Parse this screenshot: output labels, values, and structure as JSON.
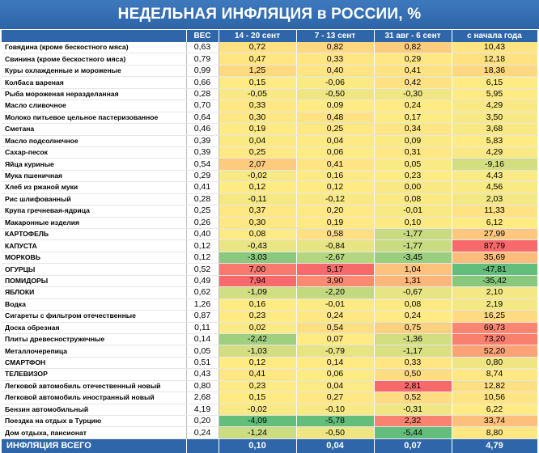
{
  "title": "НЕДЕЛЬНАЯ ИНФЛЯЦИЯ в РОССИИ, %",
  "chart_data": {
    "type": "table",
    "columns": [
      "ВЕС",
      "14 - 20 сент",
      "7 - 13 сент",
      "31 авг - 6 сент",
      "с начала года"
    ],
    "rows": [
      {
        "name": "Говядина (кроме бескостного мяса)",
        "values": [
          "0,63",
          "0,72",
          "0,82",
          "0,82",
          "10,43"
        ],
        "group_start": false
      },
      {
        "name": "Свинина (кроме бескостного мяса)",
        "values": [
          "0,79",
          "0,47",
          "0,33",
          "0,29",
          "12,18"
        ],
        "group_start": false
      },
      {
        "name": "Куры охлажденные и мороженые",
        "values": [
          "0,99",
          "1,25",
          "0,40",
          "0,41",
          "18,36"
        ],
        "group_start": false
      },
      {
        "name": "Колбаса вареная",
        "values": [
          "0,66",
          "0,15",
          "-0,06",
          "0,42",
          "6,15"
        ],
        "group_start": false
      },
      {
        "name": "Рыба мороженая неразделанная",
        "values": [
          "0,28",
          "-0,05",
          "-0,50",
          "-0,30",
          "5,95"
        ],
        "group_start": false
      },
      {
        "name": "Масло сливочное",
        "values": [
          "0,70",
          "0,33",
          "0,09",
          "0,24",
          "4,29"
        ],
        "group_start": true
      },
      {
        "name": "Молоко питьевое цельное пастеризованное",
        "values": [
          "0,64",
          "0,30",
          "0,48",
          "0,17",
          "3,50"
        ],
        "group_start": false
      },
      {
        "name": "Сметана",
        "values": [
          "0,46",
          "0,19",
          "0,25",
          "0,34",
          "3,68"
        ],
        "group_start": false
      },
      {
        "name": "Масло подсолнечное",
        "values": [
          "0,39",
          "0,04",
          "0,04",
          "0,09",
          "5,83"
        ],
        "group_start": true
      },
      {
        "name": "Сахар-песок",
        "values": [
          "0,39",
          "0,25",
          "0,06",
          "0,31",
          "4,29"
        ],
        "group_start": false
      },
      {
        "name": "Яйца куриные",
        "values": [
          "0,54",
          "2,07",
          "0,41",
          "0,05",
          "-9,16"
        ],
        "group_start": true
      },
      {
        "name": "Мука пшеничная",
        "values": [
          "0,29",
          "-0,02",
          "0,16",
          "0,23",
          "4,43"
        ],
        "group_start": false
      },
      {
        "name": "Хлеб из ржаной муки",
        "values": [
          "0,41",
          "0,12",
          "0,12",
          "0,00",
          "4,56"
        ],
        "group_start": false
      },
      {
        "name": "Рис шлифованный",
        "values": [
          "0,28",
          "-0,11",
          "-0,12",
          "0,08",
          "2,03"
        ],
        "group_start": false
      },
      {
        "name": "Крупа гречневая-ядрица",
        "values": [
          "0,25",
          "0,37",
          "0,20",
          "-0,01",
          "11,33"
        ],
        "group_start": false
      },
      {
        "name": "Макаронные изделия",
        "values": [
          "0,26",
          "0,30",
          "0,19",
          "0,10",
          "6,12"
        ],
        "group_start": false
      },
      {
        "name": "КАРТОФЕЛЬ",
        "values": [
          "0,40",
          "0,08",
          "0,58",
          "-1,77",
          "27,99"
        ],
        "group_start": true
      },
      {
        "name": "КАПУСТА",
        "values": [
          "0,12",
          "-0,43",
          "-0,84",
          "-1,77",
          "87,79"
        ],
        "group_start": false
      },
      {
        "name": "МОРКОВЬ",
        "values": [
          "0,12",
          "-3,03",
          "-2,67",
          "-3,45",
          "35,69"
        ],
        "group_start": false
      },
      {
        "name": "ОГУРЦЫ",
        "values": [
          "0,52",
          "7,00",
          "5,17",
          "1,04",
          "-47,81"
        ],
        "group_start": false
      },
      {
        "name": "ПОМИДОРЫ",
        "values": [
          "0,49",
          "7,94",
          "3,90",
          "1,31",
          "-35,42"
        ],
        "group_start": false
      },
      {
        "name": "ЯБЛОКИ",
        "values": [
          "0,62",
          "-1,09",
          "-2,20",
          "-0,67",
          "2,10"
        ],
        "group_start": false
      },
      {
        "name": "Водка",
        "values": [
          "1,26",
          "0,16",
          "-0,01",
          "0,08",
          "2,19"
        ],
        "group_start": true
      },
      {
        "name": "Сигареты с фильтром отечественные",
        "values": [
          "0,87",
          "0,23",
          "0,24",
          "0,24",
          "16,25"
        ],
        "group_start": false
      },
      {
        "name": "Доска обрезная",
        "values": [
          "0,11",
          "0,02",
          "0,54",
          "0,75",
          "69,73"
        ],
        "group_start": true
      },
      {
        "name": "Плиты древесностружечные",
        "values": [
          "0,14",
          "-2,42",
          "0,07",
          "-1,36",
          "73,20"
        ],
        "group_start": false
      },
      {
        "name": "Металлочерепица",
        "values": [
          "0,05",
          "-1,03",
          "-0,79",
          "-1,17",
          "52,20"
        ],
        "group_start": false
      },
      {
        "name": "СМАРТФОН",
        "values": [
          "0,51",
          "0,12",
          "0,14",
          "0,33",
          "0,80"
        ],
        "group_start": true
      },
      {
        "name": "ТЕЛЕВИЗОР",
        "values": [
          "0,43",
          "0,41",
          "0,06",
          "0,50",
          "8,74"
        ],
        "group_start": false
      },
      {
        "name": "Легковой автомобиль отечественный новый",
        "values": [
          "0,80",
          "0,23",
          "0,04",
          "2,81",
          "12,82"
        ],
        "group_start": true
      },
      {
        "name": "Легковой автомобиль иностранный новый",
        "values": [
          "2,68",
          "0,15",
          "0,27",
          "0,52",
          "10,56"
        ],
        "group_start": false
      },
      {
        "name": "Бензин автомобильный",
        "values": [
          "4,19",
          "-0,02",
          "-0,10",
          "-0,31",
          "6,22"
        ],
        "group_start": false
      },
      {
        "name": "Поездка на отдых в Турцию",
        "values": [
          "0,20",
          "-4,09",
          "-5,78",
          "2,32",
          "33,74"
        ],
        "group_start": true
      },
      {
        "name": "Дом отдыха, пансионат",
        "values": [
          "0,24",
          "-1,24",
          "-0,50",
          "-5,44",
          "8,80"
        ],
        "group_start": false
      }
    ],
    "total": {
      "name": "ИНФЛЯЦИЯ ВСЕГО",
      "values": [
        "",
        "0,10",
        "0,04",
        "0,07",
        "4,79"
      ]
    }
  }
}
